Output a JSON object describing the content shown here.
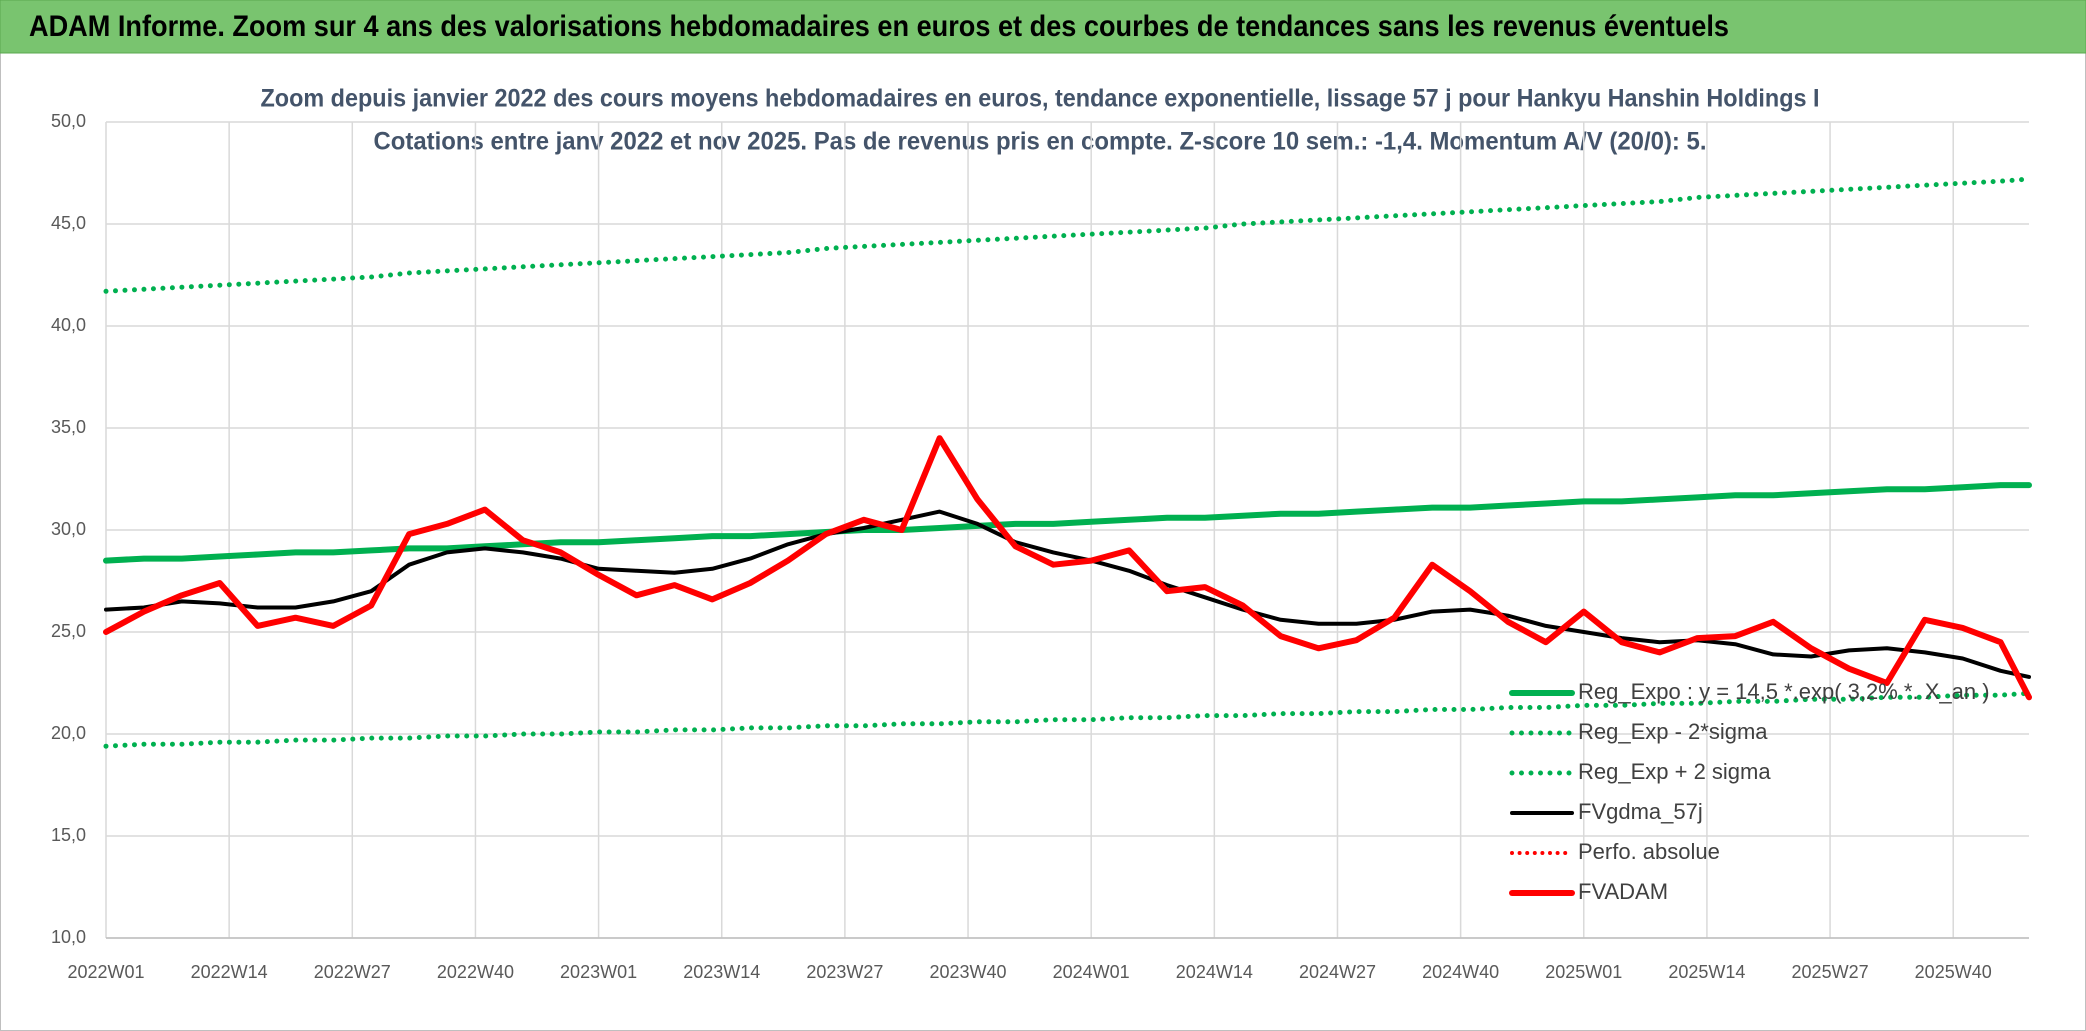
{
  "header": {
    "title": "ADAM Informe. Zoom sur 4 ans des valorisations hebdomadaires en euros et des courbes de tendances sans les revenus éventuels"
  },
  "chart_data": {
    "type": "line",
    "title": "Zoom depuis janvier 2022 des cours moyens hebdomadaires en euros, tendance exponentielle, lissage 57 j pour Hankyu Hanshin Holdings I",
    "subtitle": "Cotations entre janv 2022 et nov 2025. Pas de revenus pris en compte. Z-score 10 sem.: -1,4. Momentum A/V (20/0): 5.",
    "x": [
      0,
      4,
      8,
      12,
      16,
      20,
      24,
      28,
      32,
      36,
      40,
      44,
      48,
      52,
      56,
      60,
      64,
      68,
      72,
      76,
      80,
      84,
      88,
      92,
      96,
      100,
      104,
      108,
      112,
      116,
      120,
      124,
      128,
      132,
      136,
      140,
      144,
      148,
      152,
      156,
      160,
      164,
      168,
      172,
      176,
      180,
      184,
      188,
      192,
      196,
      200,
      203
    ],
    "xlim": [
      0,
      203
    ],
    "xticks": [
      {
        "value": 0,
        "label": "2022W01"
      },
      {
        "value": 13,
        "label": "2022W14"
      },
      {
        "value": 26,
        "label": "2022W27"
      },
      {
        "value": 39,
        "label": "2022W40"
      },
      {
        "value": 52,
        "label": "2023W01"
      },
      {
        "value": 65,
        "label": "2023W14"
      },
      {
        "value": 78,
        "label": "2023W27"
      },
      {
        "value": 91,
        "label": "2023W40"
      },
      {
        "value": 104,
        "label": "2024W01"
      },
      {
        "value": 117,
        "label": "2024W14"
      },
      {
        "value": 130,
        "label": "2024W27"
      },
      {
        "value": 143,
        "label": "2024W40"
      },
      {
        "value": 156,
        "label": "2025W01"
      },
      {
        "value": 169,
        "label": "2025W14"
      },
      {
        "value": 182,
        "label": "2025W27"
      },
      {
        "value": 195,
        "label": "2025W40"
      }
    ],
    "ylim": [
      10,
      50
    ],
    "yticks": [
      {
        "value": 10,
        "label": "10,0"
      },
      {
        "value": 15,
        "label": "15,0"
      },
      {
        "value": 20,
        "label": "20,0"
      },
      {
        "value": 25,
        "label": "25,0"
      },
      {
        "value": 30,
        "label": "30,0"
      },
      {
        "value": 35,
        "label": "35,0"
      },
      {
        "value": 40,
        "label": "40,0"
      },
      {
        "value": 45,
        "label": "45,0"
      },
      {
        "value": 50,
        "label": "50,0"
      }
    ],
    "grid": true,
    "series": [
      {
        "name": "Reg_Expo : y = 14,5 *.exp( 3,2% *. X_an )",
        "color": "#00b050",
        "style": "solid",
        "width": 6,
        "values": [
          28.5,
          28.6,
          28.6,
          28.7,
          28.8,
          28.9,
          28.9,
          29.0,
          29.1,
          29.1,
          29.2,
          29.3,
          29.4,
          29.4,
          29.5,
          29.6,
          29.7,
          29.7,
          29.8,
          29.9,
          30.0,
          30.0,
          30.1,
          30.2,
          30.3,
          30.3,
          30.4,
          30.5,
          30.6,
          30.6,
          30.7,
          30.8,
          30.8,
          30.9,
          31.0,
          31.1,
          31.1,
          31.2,
          31.3,
          31.4,
          31.4,
          31.5,
          31.6,
          31.7,
          31.7,
          31.8,
          31.9,
          32.0,
          32.0,
          32.1,
          32.2,
          32.2
        ]
      },
      {
        "name": "Reg_Exp - 2*sigma",
        "color": "#00b050",
        "style": "dotted",
        "width": 5,
        "values": [
          19.4,
          19.5,
          19.5,
          19.6,
          19.6,
          19.7,
          19.7,
          19.8,
          19.8,
          19.9,
          19.9,
          20.0,
          20.0,
          20.1,
          20.1,
          20.2,
          20.2,
          20.3,
          20.3,
          20.4,
          20.4,
          20.5,
          20.5,
          20.6,
          20.6,
          20.7,
          20.7,
          20.8,
          20.8,
          20.9,
          20.9,
          21.0,
          21.0,
          21.1,
          21.1,
          21.2,
          21.2,
          21.3,
          21.3,
          21.4,
          21.4,
          21.5,
          21.5,
          21.6,
          21.6,
          21.7,
          21.7,
          21.8,
          21.8,
          21.9,
          21.9,
          22.0
        ]
      },
      {
        "name": "Reg_Exp + 2 sigma",
        "color": "#00b050",
        "style": "dotted",
        "width": 5,
        "values": [
          41.7,
          41.8,
          41.9,
          42.0,
          42.1,
          42.2,
          42.3,
          42.4,
          42.6,
          42.7,
          42.8,
          42.9,
          43.0,
          43.1,
          43.2,
          43.3,
          43.4,
          43.5,
          43.6,
          43.8,
          43.9,
          44.0,
          44.1,
          44.2,
          44.3,
          44.4,
          44.5,
          44.6,
          44.7,
          44.8,
          45.0,
          45.1,
          45.2,
          45.3,
          45.4,
          45.5,
          45.6,
          45.7,
          45.8,
          45.9,
          46.0,
          46.1,
          46.3,
          46.4,
          46.5,
          46.6,
          46.7,
          46.8,
          46.9,
          47.0,
          47.1,
          47.2
        ]
      },
      {
        "name": "FVgdma_57j",
        "color": "#000000",
        "style": "solid",
        "width": 4,
        "values": [
          26.1,
          26.2,
          26.5,
          26.4,
          26.2,
          26.2,
          26.5,
          27.0,
          28.3,
          28.9,
          29.1,
          28.9,
          28.6,
          28.1,
          28.0,
          27.9,
          28.1,
          28.6,
          29.3,
          29.8,
          30.1,
          30.5,
          30.9,
          30.3,
          29.4,
          28.9,
          28.5,
          28.0,
          27.3,
          26.7,
          26.1,
          25.6,
          25.4,
          25.4,
          25.6,
          26.0,
          26.1,
          25.8,
          25.3,
          25.0,
          24.7,
          24.5,
          24.6,
          24.4,
          23.9,
          23.8,
          24.1,
          24.2,
          24.0,
          23.7,
          23.1,
          22.8
        ]
      },
      {
        "name": "Perfo. absolue",
        "color": "#ff0000",
        "style": "dotted",
        "width": 4,
        "values": [
          null,
          null,
          null,
          null,
          null,
          null,
          null,
          null,
          null,
          null,
          null,
          null,
          null,
          null,
          null,
          null,
          null,
          null,
          null,
          null,
          null,
          null,
          null,
          null,
          null,
          null,
          null,
          null,
          null,
          null,
          null,
          null,
          null,
          null,
          null,
          null,
          null,
          null,
          null,
          null,
          null,
          null,
          null,
          null,
          null,
          null,
          null,
          null,
          null,
          null,
          null,
          null
        ]
      },
      {
        "name": "FVADAM",
        "color": "#ff0000",
        "style": "solid",
        "width": 6,
        "values": [
          25.0,
          26.0,
          26.8,
          27.4,
          25.3,
          25.7,
          25.3,
          26.3,
          29.8,
          30.3,
          31.0,
          29.5,
          28.9,
          27.8,
          26.8,
          27.3,
          26.6,
          27.4,
          28.5,
          29.8,
          30.5,
          30.0,
          34.5,
          31.5,
          29.2,
          28.3,
          28.5,
          29.0,
          27.0,
          27.2,
          26.3,
          24.8,
          24.2,
          24.6,
          25.7,
          28.3,
          27.0,
          25.5,
          24.5,
          26.0,
          24.5,
          24.0,
          24.7,
          24.8,
          25.5,
          24.2,
          23.2,
          22.5,
          25.6,
          25.2,
          24.5,
          21.8
        ]
      }
    ]
  }
}
